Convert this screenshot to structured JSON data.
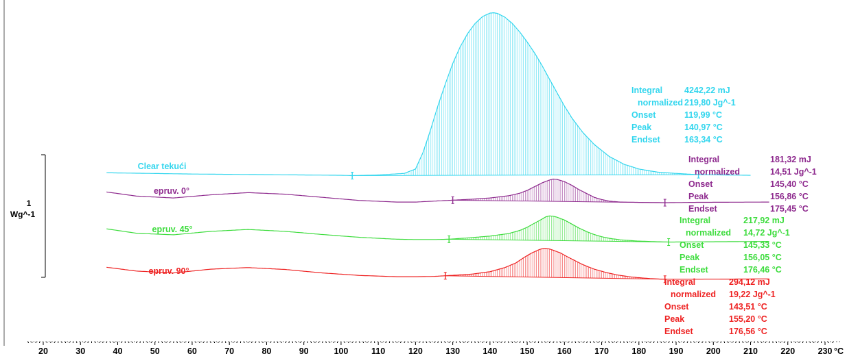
{
  "chart_data": {
    "type": "line",
    "xaxis": {
      "unit": "°C",
      "range": [
        15,
        233
      ],
      "ticks": [
        "20",
        "30",
        "40",
        "50",
        "60",
        "70",
        "80",
        "90",
        "100",
        "110",
        "120",
        "130",
        "140",
        "150",
        "160",
        "170",
        "180",
        "190",
        "200",
        "210",
        "220",
        "230"
      ]
    },
    "scale": {
      "value": "1",
      "unit": "Wg^-1"
    },
    "grid": false,
    "series": [
      {
        "name": "Clear tekući",
        "color": "#33d6ee",
        "x": [
          37,
          60,
          80,
          100,
          103,
          110,
          117,
          120,
          122,
          124,
          126,
          128,
          130,
          132,
          134,
          136,
          138,
          140,
          141,
          142,
          144,
          146,
          148,
          150,
          152,
          154,
          156,
          158,
          160,
          162,
          165,
          168,
          172,
          176,
          180,
          185,
          190,
          196,
          210
        ],
        "y": [
          0.08,
          0.04,
          0.02,
          0.0,
          -0.01,
          0.01,
          0.06,
          0.2,
          0.72,
          1.43,
          2.2,
          2.9,
          3.55,
          4.08,
          4.5,
          4.82,
          5.04,
          5.15,
          5.16,
          5.14,
          5.02,
          4.82,
          4.55,
          4.23,
          3.88,
          3.48,
          3.05,
          2.62,
          2.2,
          1.82,
          1.35,
          0.98,
          0.6,
          0.35,
          0.2,
          0.1,
          0.06,
          0.02,
          0.0
        ],
        "baseline_range": [
          103,
          196
        ],
        "hatched_range": [
          117,
          196
        ],
        "markers": [
          103,
          196
        ],
        "integral": {
          "labels": [
            "Integral",
            "normalized",
            "Onset",
            "Peak",
            "Endset"
          ],
          "values": [
            "4242,22 mJ",
            "219,80 Jg^-1",
            "119,99 °C",
            "140,97 °C",
            "163,34 °C"
          ]
        }
      },
      {
        "name": "epruv. 0°",
        "color": "#8e2a8e",
        "x": [
          37,
          45,
          55,
          65,
          75,
          85,
          95,
          105,
          115,
          120,
          125,
          130,
          135,
          140,
          145,
          148,
          150,
          152,
          154,
          156,
          157,
          158,
          160,
          162,
          164,
          166,
          168,
          170,
          172,
          175,
          180,
          187,
          195,
          215
        ],
        "y": [
          -0.53,
          -0.66,
          -0.72,
          -0.62,
          -0.55,
          -0.6,
          -0.7,
          -0.8,
          -0.85,
          -0.85,
          -0.82,
          -0.79,
          -0.76,
          -0.72,
          -0.65,
          -0.57,
          -0.48,
          -0.36,
          -0.24,
          -0.15,
          -0.12,
          -0.13,
          -0.2,
          -0.32,
          -0.46,
          -0.58,
          -0.7,
          -0.77,
          -0.82,
          -0.85,
          -0.86,
          -0.87,
          -0.86,
          -0.85
        ],
        "baseline_range": [
          130,
          187
        ],
        "hatched_range": [
          130,
          187
        ],
        "markers": [
          130,
          187
        ],
        "integral": {
          "labels": [
            "Integral",
            "normalized",
            "Onset",
            "Peak",
            "Endset"
          ],
          "values": [
            "181,32 mJ",
            "14,51 Jg^-1",
            "145,40 °C",
            "156,86 °C",
            "175,45 °C"
          ]
        }
      },
      {
        "name": "epruv. 45°",
        "color": "#3ddc3d",
        "x": [
          37,
          45,
          55,
          65,
          75,
          85,
          95,
          105,
          115,
          120,
          125,
          129,
          135,
          140,
          145,
          148,
          150,
          152,
          154,
          155,
          156,
          157,
          158,
          160,
          162,
          164,
          166,
          168,
          170,
          172,
          175,
          180,
          185,
          188,
          200,
          215
        ],
        "y": [
          -1.7,
          -1.84,
          -1.89,
          -1.78,
          -1.72,
          -1.78,
          -1.88,
          -1.97,
          -2.03,
          -2.04,
          -2.04,
          -2.03,
          -1.98,
          -1.93,
          -1.85,
          -1.75,
          -1.65,
          -1.52,
          -1.39,
          -1.32,
          -1.29,
          -1.3,
          -1.33,
          -1.42,
          -1.55,
          -1.68,
          -1.79,
          -1.88,
          -1.95,
          -2.0,
          -2.05,
          -2.09,
          -2.11,
          -2.12,
          -2.11,
          -2.1
        ],
        "baseline_range": [
          129,
          188
        ],
        "hatched_range": [
          129,
          188
        ],
        "markers": [
          129,
          188
        ],
        "integral": {
          "labels": [
            "Integral",
            "normalized",
            "Onset",
            "Peak",
            "Endset"
          ],
          "values": [
            "217,92 mJ",
            "14,72 Jg^-1",
            "145,33 °C",
            "156,05 °C",
            "176,46 °C"
          ]
        }
      },
      {
        "name": "epruv. 90°",
        "color": "#ee2222",
        "x": [
          37,
          45,
          55,
          65,
          75,
          85,
          95,
          105,
          115,
          120,
          125,
          128,
          135,
          140,
          144,
          147,
          149,
          151,
          153,
          154,
          155,
          156,
          157,
          159,
          161,
          163,
          165,
          168,
          171,
          174,
          178,
          183,
          187,
          195,
          215
        ],
        "y": [
          -2.92,
          -3.04,
          -3.1,
          -2.98,
          -2.93,
          -2.99,
          -3.1,
          -3.18,
          -3.22,
          -3.22,
          -3.21,
          -3.19,
          -3.14,
          -3.06,
          -2.93,
          -2.78,
          -2.62,
          -2.48,
          -2.37,
          -2.33,
          -2.32,
          -2.34,
          -2.38,
          -2.47,
          -2.6,
          -2.72,
          -2.84,
          -2.98,
          -3.08,
          -3.16,
          -3.23,
          -3.28,
          -3.3,
          -3.3,
          -3.29
        ],
        "baseline_range": [
          128,
          187
        ],
        "hatched_range": [
          128,
          187
        ],
        "markers": [
          128,
          187
        ],
        "integral": {
          "labels": [
            "Integral",
            "normalized",
            "Onset",
            "Peak",
            "Endset"
          ],
          "values": [
            "294,12 mJ",
            "19,22 Jg^-1",
            "143,51 °C",
            "155,20 °C",
            "176,56 °C"
          ]
        }
      }
    ]
  }
}
